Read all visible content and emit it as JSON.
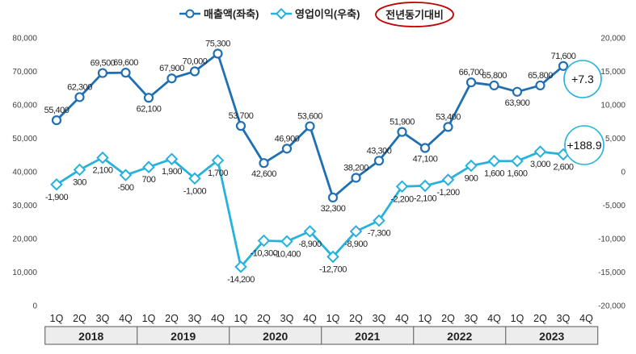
{
  "chart_data": {
    "type": "line",
    "title": "",
    "categories": [
      "2018 1Q",
      "2018 2Q",
      "2018 3Q",
      "2018 4Q",
      "2019 1Q",
      "2019 2Q",
      "2019 3Q",
      "2019 4Q",
      "2020 1Q",
      "2020 2Q",
      "2020 3Q",
      "2020 4Q",
      "2021 1Q",
      "2021 2Q",
      "2021 3Q",
      "2021 4Q",
      "2022 1Q",
      "2022 2Q",
      "2022 3Q",
      "2022 4Q",
      "2023 1Q",
      "2023 2Q",
      "2023 3Q",
      "2023 4Q"
    ],
    "quarters": [
      "1Q",
      "2Q",
      "3Q",
      "4Q",
      "1Q",
      "2Q",
      "3Q",
      "4Q",
      "1Q",
      "2Q",
      "3Q",
      "4Q",
      "1Q",
      "2Q",
      "3Q",
      "4Q",
      "1Q",
      "2Q",
      "3Q",
      "4Q",
      "1Q",
      "2Q",
      "3Q",
      "4Q"
    ],
    "years": [
      "2018",
      "2019",
      "2020",
      "2021",
      "2022",
      "2023"
    ],
    "left_axis": {
      "ylim": [
        0,
        80000
      ],
      "ticks": [
        "0",
        "10,000",
        "20,000",
        "30,000",
        "40,000",
        "50,000",
        "60,000",
        "70,000",
        "80,000"
      ]
    },
    "right_axis": {
      "ylim": [
        -20000,
        20000
      ],
      "ticks": [
        "-20,000",
        "-15,000",
        "-10,000",
        "-5,000",
        "0",
        "5,000",
        "10,000",
        "15,000",
        "20,000"
      ]
    },
    "series": [
      {
        "name": "매출액(좌축)",
        "axis": "left",
        "color": "#1f6fb2",
        "values": [
          55400,
          62300,
          69500,
          69600,
          62100,
          67900,
          70000,
          75300,
          53700,
          42600,
          46900,
          53600,
          32300,
          38200,
          43300,
          51900,
          47100,
          53400,
          66700,
          65800,
          63900,
          65800,
          71600,
          null
        ],
        "labels": [
          "55,400",
          "62,300",
          "69,500",
          "69,600",
          "62,100",
          "67,900",
          "70,000",
          "75,300",
          "53,700",
          "42,600",
          "46,900",
          "53,600",
          "32,300",
          "38,200",
          "43,300",
          "51,900",
          "47,100",
          "53,400",
          "66,700",
          "65,800",
          "63,900",
          "65,800",
          "71,600",
          ""
        ]
      },
      {
        "name": "영업이익(우축)",
        "axis": "right",
        "color": "#26b2dc",
        "values": [
          -1900,
          300,
          2100,
          -500,
          700,
          1900,
          -1000,
          1700,
          -14200,
          -10300,
          -10400,
          -8900,
          -12700,
          -8900,
          -7300,
          -2200,
          -2100,
          -1200,
          900,
          1600,
          1600,
          3000,
          2600,
          null
        ],
        "labels": [
          "-1,900",
          "300",
          "2,100",
          "-500",
          "700",
          "1,900",
          "-1,000",
          "1,700",
          "-14,200",
          "-10,300",
          "-10,400",
          "-8,900",
          "-12,700",
          "-8,900",
          "-7,300",
          "-2,200",
          "-2,100",
          "-1,200",
          "900",
          "1,600",
          "1,600",
          "3,000",
          "2,600",
          ""
        ]
      }
    ],
    "legend": {
      "position": "top-center",
      "items": [
        "매출액(좌축)",
        "영업이익(우축)"
      ],
      "note": "전년동기대비"
    },
    "annotations": [
      {
        "text": "+7.3",
        "series": "매출액(좌축)"
      },
      {
        "text": "+188.9",
        "series": "영업이익(우축)"
      }
    ]
  }
}
